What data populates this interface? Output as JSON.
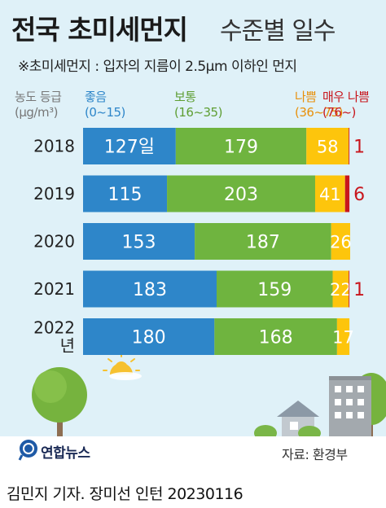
{
  "title": "전국 초미세먼지",
  "title_sub": "수준별 일수",
  "subtitle": "※초미세먼지 : 입자의 지름이 2.5μm 이하인 먼지",
  "legend": {
    "header_line1": "농도 등급",
    "header_line2": "(μg/m³)",
    "items": [
      {
        "label": "좋음",
        "range": "(0~15)",
        "color": "#2e86c9"
      },
      {
        "label": "보통",
        "range": "(16~35)",
        "color": "#6fb43f"
      },
      {
        "label": "나쁨",
        "range": "(36~75)",
        "color": "#f1a30c"
      },
      {
        "label": "매우 나쁨",
        "range": "(76~)",
        "color": "#c8161d"
      }
    ]
  },
  "chart_data": {
    "type": "bar",
    "stacked": true,
    "orientation": "horizontal",
    "categories": [
      "2018",
      "2019",
      "2020",
      "2021",
      "2022\n년"
    ],
    "series": [
      {
        "name": "좋음",
        "color": "#2e86c9",
        "values": [
          127,
          115,
          153,
          183,
          180
        ]
      },
      {
        "name": "보통",
        "color": "#6fb43f",
        "values": [
          179,
          203,
          187,
          159,
          168
        ]
      },
      {
        "name": "나쁨",
        "color": "#fdc50c",
        "values": [
          58,
          41,
          26,
          22,
          17
        ]
      },
      {
        "name": "매우 나쁨",
        "color": "#c8161d",
        "values": [
          1,
          6,
          0,
          1,
          0
        ]
      }
    ],
    "value_labels": [
      [
        "127일",
        "179",
        "58",
        "1"
      ],
      [
        "115",
        "203",
        "41",
        "6"
      ],
      [
        "153",
        "187",
        "26",
        ""
      ],
      [
        "183",
        "159",
        "22",
        "1"
      ],
      [
        "180",
        "168",
        "17",
        ""
      ]
    ],
    "xlim": [
      0,
      366
    ]
  },
  "footer": {
    "logo_text": "연합뉴스",
    "source": "자료: 환경부",
    "credit": "김민지 기자. 장미선 인턴  20230116"
  }
}
